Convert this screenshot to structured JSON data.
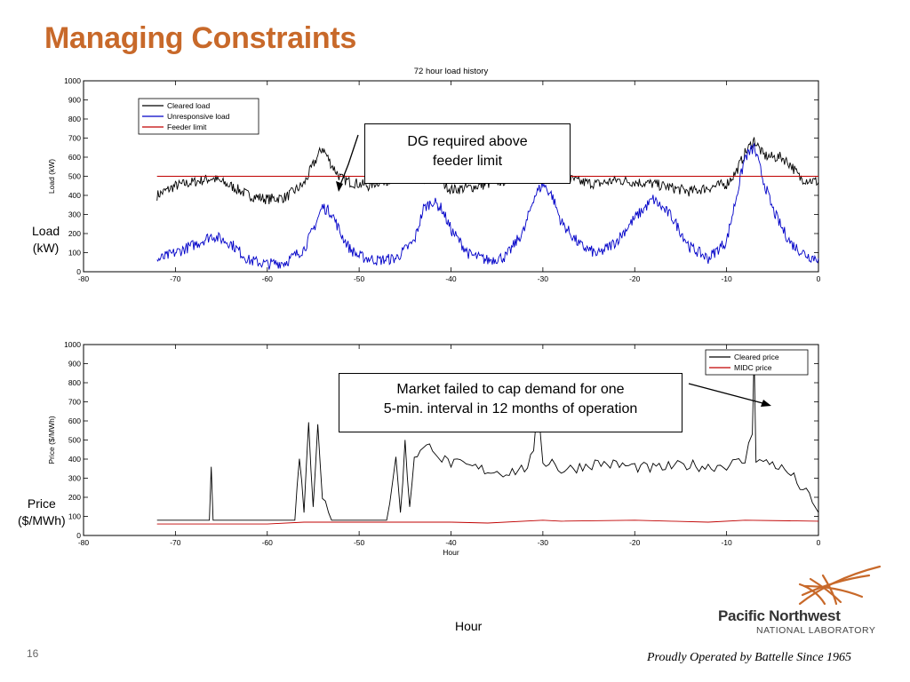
{
  "slide": {
    "title": "Managing Constraints",
    "page_number": "16",
    "hour_label": "Hour",
    "load_label_line1": "Load",
    "load_label_line2": "(kW)",
    "price_label_line1": "Price",
    "price_label_line2": "($/MWh)"
  },
  "callouts": {
    "dg": {
      "line1": "DG required above",
      "line2": "feeder limit"
    },
    "market": {
      "line1": "Market failed to cap demand for one",
      "line2": "5-min. interval in 12 months of operation"
    }
  },
  "footer": {
    "org_line1": "Pacific Northwest",
    "org_line2": "NATIONAL LABORATORY",
    "operated": "Proudly Operated by Battelle Since 1965"
  },
  "colors": {
    "title": "#c8692a",
    "black_series": "#000000",
    "blue_series": "#0000c8",
    "red_series": "#c00000",
    "logo": "#c8692a"
  },
  "chart_data": [
    {
      "type": "line",
      "title": "72 hour load history",
      "xlabel": "",
      "ylabel": "Load (kW)",
      "xlim": [
        -80,
        0
      ],
      "ylim": [
        0,
        1000
      ],
      "xticks": [
        -80,
        -70,
        -60,
        -50,
        -40,
        -30,
        -20,
        -10,
        0
      ],
      "yticks": [
        0,
        100,
        200,
        300,
        400,
        500,
        600,
        700,
        800,
        900,
        1000
      ],
      "legend_position": "top-left",
      "grid": false,
      "series": [
        {
          "name": "Cleared load",
          "color": "#000000",
          "x": [
            -72,
            -70,
            -68,
            -66,
            -64,
            -62,
            -60,
            -58,
            -56,
            -55,
            -54,
            -53,
            -52,
            -51,
            -50,
            -49,
            -48,
            -47,
            -46,
            -45,
            -44,
            -43,
            -42,
            -41,
            -40,
            -38,
            -36,
            -34,
            -32,
            -31,
            -30,
            -29,
            -28,
            -26,
            -24,
            -22,
            -20,
            -18,
            -16,
            -14,
            -12,
            -10,
            -9,
            -8,
            -7,
            -6,
            -5,
            -4,
            -3,
            -2,
            -1,
            0
          ],
          "y": [
            400,
            450,
            470,
            490,
            450,
            400,
            380,
            390,
            460,
            560,
            650,
            560,
            490,
            470,
            460,
            450,
            470,
            480,
            490,
            480,
            490,
            480,
            500,
            470,
            430,
            440,
            460,
            480,
            530,
            590,
            600,
            560,
            500,
            470,
            460,
            480,
            470,
            460,
            440,
            420,
            440,
            460,
            520,
            620,
            690,
            610,
            600,
            600,
            560,
            490,
            480,
            470
          ]
        },
        {
          "name": "Unresponsive load",
          "color": "#0000c8",
          "x": [
            -72,
            -70,
            -68,
            -66,
            -64,
            -62,
            -60,
            -58,
            -56,
            -55,
            -54,
            -53,
            -52,
            -51,
            -50,
            -48,
            -46,
            -44,
            -43,
            -42,
            -41,
            -40,
            -38,
            -36,
            -34,
            -32,
            -31,
            -30,
            -29,
            -28,
            -26,
            -24,
            -22,
            -20,
            -18,
            -16,
            -14,
            -12,
            -10,
            -9,
            -8,
            -7,
            -6,
            -5,
            -4,
            -3,
            -2,
            -1,
            0
          ],
          "y": [
            60,
            100,
            140,
            190,
            150,
            60,
            40,
            50,
            120,
            220,
            340,
            310,
            200,
            120,
            80,
            60,
            70,
            160,
            330,
            370,
            330,
            220,
            90,
            60,
            80,
            220,
            390,
            460,
            400,
            260,
            140,
            90,
            160,
            280,
            380,
            290,
            130,
            70,
            160,
            380,
            600,
            650,
            480,
            330,
            230,
            150,
            110,
            80,
            70
          ]
        },
        {
          "name": "Feeder limit",
          "color": "#c00000",
          "x": [
            -72,
            0
          ],
          "y": [
            500,
            500
          ]
        }
      ]
    },
    {
      "type": "line",
      "title": "",
      "xlabel": "Hour",
      "ylabel": "Price ($/MWh)",
      "xlim": [
        -80,
        0
      ],
      "ylim": [
        0,
        1000
      ],
      "xticks": [
        -80,
        -70,
        -60,
        -50,
        -40,
        -30,
        -20,
        -10,
        0
      ],
      "yticks": [
        0,
        100,
        200,
        300,
        400,
        500,
        600,
        700,
        800,
        900,
        1000
      ],
      "legend_position": "top-right",
      "grid": false,
      "series": [
        {
          "name": "Cleared price",
          "color": "#000000",
          "x": [
            -72,
            -67,
            -66.3,
            -66.1,
            -65.9,
            -65,
            -58,
            -57,
            -56.5,
            -56,
            -55.5,
            -55,
            -54.5,
            -54,
            -53,
            -50,
            -48,
            -47,
            -46,
            -45.5,
            -45,
            -44.5,
            -44,
            -43,
            -42,
            -41,
            -40,
            -38,
            -36,
            -34,
            -32,
            -31,
            -30.5,
            -30,
            -29,
            -28,
            -26,
            -24,
            -22,
            -20,
            -18,
            -16,
            -14,
            -12,
            -10,
            -8,
            -7.2,
            -7,
            -6.8,
            -6,
            -5,
            -4,
            -3,
            -2,
            -1,
            0
          ],
          "y": [
            80,
            80,
            80,
            380,
            80,
            80,
            80,
            80,
            400,
            120,
            580,
            150,
            600,
            200,
            80,
            80,
            80,
            80,
            400,
            120,
            480,
            150,
            420,
            450,
            470,
            400,
            380,
            360,
            340,
            330,
            350,
            420,
            700,
            380,
            390,
            340,
            360,
            380,
            370,
            360,
            350,
            360,
            370,
            360,
            370,
            390,
            540,
            980,
            400,
            380,
            380,
            350,
            320,
            260,
            200,
            120
          ]
        },
        {
          "name": "MIDC price",
          "color": "#c00000",
          "x": [
            -72,
            -60,
            -56,
            -40,
            -36,
            -30,
            -28,
            -20,
            -16,
            -12,
            -8,
            0
          ],
          "y": [
            60,
            60,
            70,
            70,
            65,
            80,
            75,
            80,
            75,
            70,
            80,
            75
          ]
        }
      ]
    }
  ]
}
